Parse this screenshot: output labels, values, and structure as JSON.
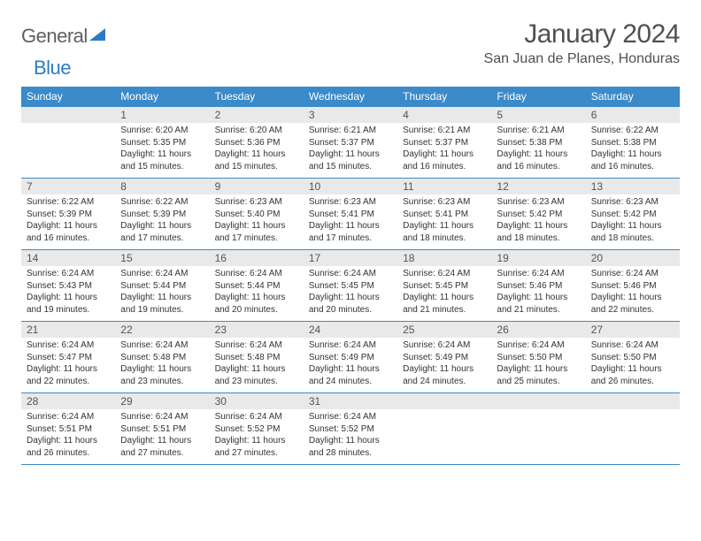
{
  "brand": {
    "part1": "General",
    "part2": "Blue"
  },
  "title": {
    "month": "January 2024",
    "location": "San Juan de Planes, Honduras"
  },
  "colors": {
    "header_bg": "#3b8ac9",
    "header_text": "#ffffff",
    "daynum_bg": "#e9e9e9",
    "row_border": "#3b8ac9",
    "logo_gray": "#606060",
    "logo_blue": "#2d7bc6",
    "body_text": "#333333",
    "title_text": "#505050"
  },
  "typography": {
    "month_fontsize": 30,
    "location_fontsize": 16,
    "dow_fontsize": 12,
    "daynum_fontsize": 12,
    "body_fontsize": 10
  },
  "dow": [
    "Sunday",
    "Monday",
    "Tuesday",
    "Wednesday",
    "Thursday",
    "Friday",
    "Saturday"
  ],
  "weeks": [
    [
      null,
      {
        "n": "1",
        "sr": "6:20 AM",
        "ss": "5:35 PM",
        "dl": "11 hours and 15 minutes."
      },
      {
        "n": "2",
        "sr": "6:20 AM",
        "ss": "5:36 PM",
        "dl": "11 hours and 15 minutes."
      },
      {
        "n": "3",
        "sr": "6:21 AM",
        "ss": "5:37 PM",
        "dl": "11 hours and 15 minutes."
      },
      {
        "n": "4",
        "sr": "6:21 AM",
        "ss": "5:37 PM",
        "dl": "11 hours and 16 minutes."
      },
      {
        "n": "5",
        "sr": "6:21 AM",
        "ss": "5:38 PM",
        "dl": "11 hours and 16 minutes."
      },
      {
        "n": "6",
        "sr": "6:22 AM",
        "ss": "5:38 PM",
        "dl": "11 hours and 16 minutes."
      }
    ],
    [
      {
        "n": "7",
        "sr": "6:22 AM",
        "ss": "5:39 PM",
        "dl": "11 hours and 16 minutes."
      },
      {
        "n": "8",
        "sr": "6:22 AM",
        "ss": "5:39 PM",
        "dl": "11 hours and 17 minutes."
      },
      {
        "n": "9",
        "sr": "6:23 AM",
        "ss": "5:40 PM",
        "dl": "11 hours and 17 minutes."
      },
      {
        "n": "10",
        "sr": "6:23 AM",
        "ss": "5:41 PM",
        "dl": "11 hours and 17 minutes."
      },
      {
        "n": "11",
        "sr": "6:23 AM",
        "ss": "5:41 PM",
        "dl": "11 hours and 18 minutes."
      },
      {
        "n": "12",
        "sr": "6:23 AM",
        "ss": "5:42 PM",
        "dl": "11 hours and 18 minutes."
      },
      {
        "n": "13",
        "sr": "6:23 AM",
        "ss": "5:42 PM",
        "dl": "11 hours and 18 minutes."
      }
    ],
    [
      {
        "n": "14",
        "sr": "6:24 AM",
        "ss": "5:43 PM",
        "dl": "11 hours and 19 minutes."
      },
      {
        "n": "15",
        "sr": "6:24 AM",
        "ss": "5:44 PM",
        "dl": "11 hours and 19 minutes."
      },
      {
        "n": "16",
        "sr": "6:24 AM",
        "ss": "5:44 PM",
        "dl": "11 hours and 20 minutes."
      },
      {
        "n": "17",
        "sr": "6:24 AM",
        "ss": "5:45 PM",
        "dl": "11 hours and 20 minutes."
      },
      {
        "n": "18",
        "sr": "6:24 AM",
        "ss": "5:45 PM",
        "dl": "11 hours and 21 minutes."
      },
      {
        "n": "19",
        "sr": "6:24 AM",
        "ss": "5:46 PM",
        "dl": "11 hours and 21 minutes."
      },
      {
        "n": "20",
        "sr": "6:24 AM",
        "ss": "5:46 PM",
        "dl": "11 hours and 22 minutes."
      }
    ],
    [
      {
        "n": "21",
        "sr": "6:24 AM",
        "ss": "5:47 PM",
        "dl": "11 hours and 22 minutes."
      },
      {
        "n": "22",
        "sr": "6:24 AM",
        "ss": "5:48 PM",
        "dl": "11 hours and 23 minutes."
      },
      {
        "n": "23",
        "sr": "6:24 AM",
        "ss": "5:48 PM",
        "dl": "11 hours and 23 minutes."
      },
      {
        "n": "24",
        "sr": "6:24 AM",
        "ss": "5:49 PM",
        "dl": "11 hours and 24 minutes."
      },
      {
        "n": "25",
        "sr": "6:24 AM",
        "ss": "5:49 PM",
        "dl": "11 hours and 24 minutes."
      },
      {
        "n": "26",
        "sr": "6:24 AM",
        "ss": "5:50 PM",
        "dl": "11 hours and 25 minutes."
      },
      {
        "n": "27",
        "sr": "6:24 AM",
        "ss": "5:50 PM",
        "dl": "11 hours and 26 minutes."
      }
    ],
    [
      {
        "n": "28",
        "sr": "6:24 AM",
        "ss": "5:51 PM",
        "dl": "11 hours and 26 minutes."
      },
      {
        "n": "29",
        "sr": "6:24 AM",
        "ss": "5:51 PM",
        "dl": "11 hours and 27 minutes."
      },
      {
        "n": "30",
        "sr": "6:24 AM",
        "ss": "5:52 PM",
        "dl": "11 hours and 27 minutes."
      },
      {
        "n": "31",
        "sr": "6:24 AM",
        "ss": "5:52 PM",
        "dl": "11 hours and 28 minutes."
      },
      null,
      null,
      null
    ]
  ],
  "labels": {
    "sunrise": "Sunrise:",
    "sunset": "Sunset:",
    "daylight": "Daylight:"
  }
}
